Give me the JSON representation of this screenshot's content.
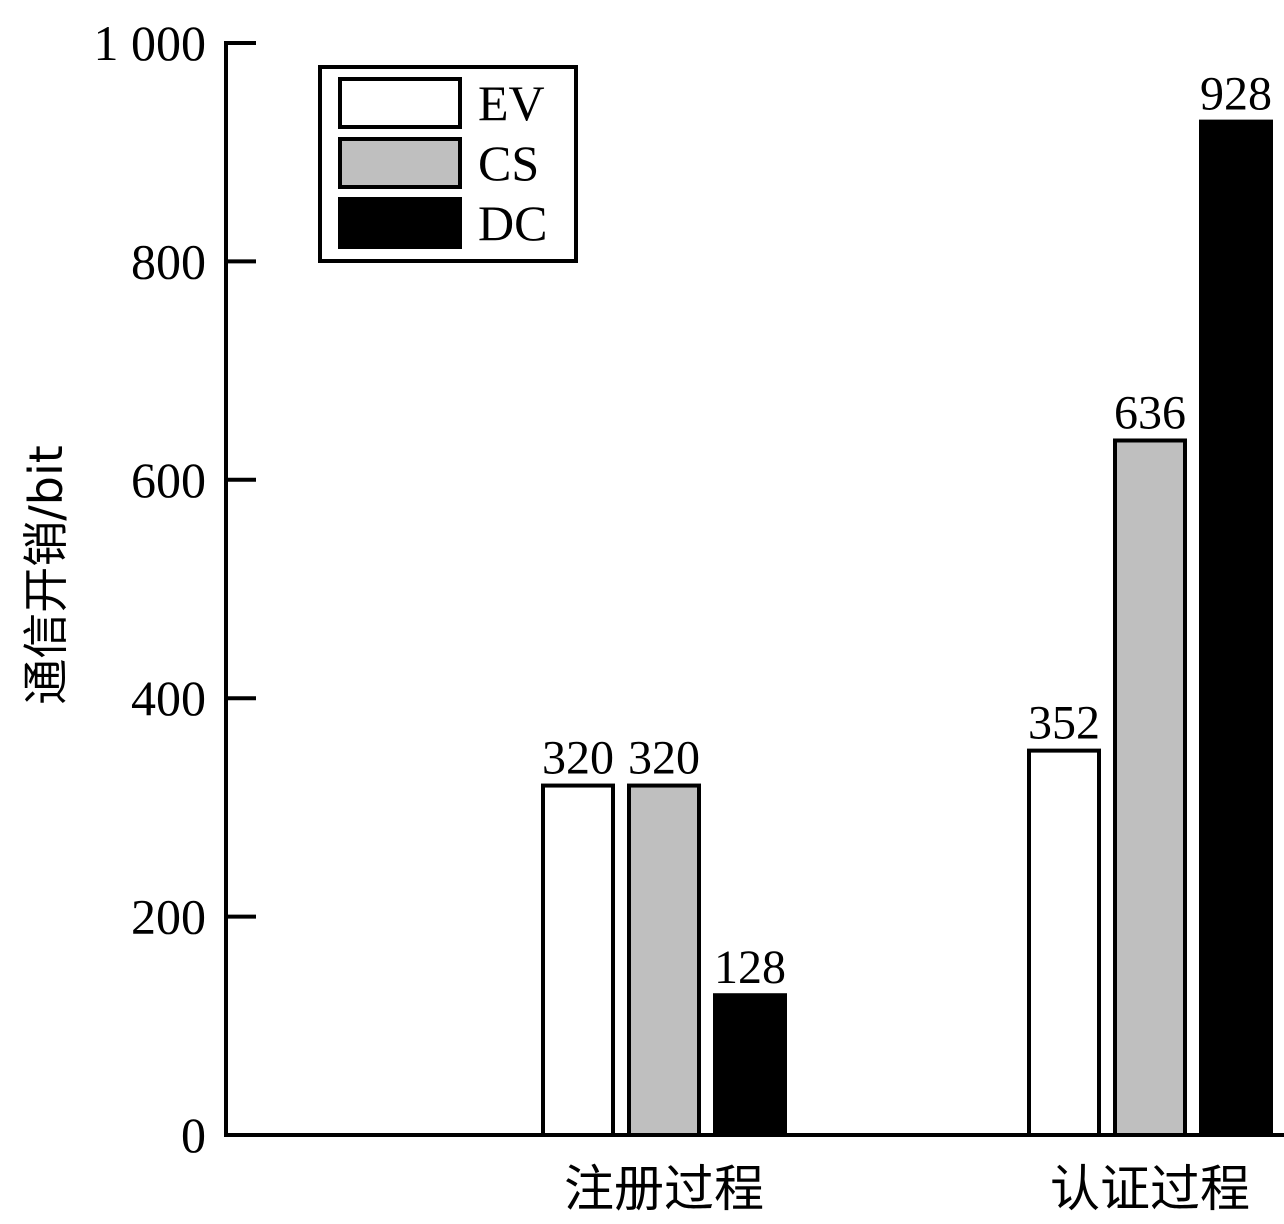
{
  "chart_data": {
    "type": "bar",
    "categories": [
      "注册过程",
      "认证过程"
    ],
    "series": [
      {
        "name": "EV",
        "values": [
          320,
          352
        ],
        "color": "#ffffff"
      },
      {
        "name": "CS",
        "values": [
          320,
          636
        ],
        "color": "#bfbfbf"
      },
      {
        "name": "DC",
        "values": [
          128,
          928
        ],
        "color": "#000000"
      }
    ],
    "ylabel": "通信开销/bit",
    "xlabel": "",
    "ylim": [
      0,
      1000
    ],
    "yticks": [
      0,
      200,
      400,
      600,
      800,
      1000
    ],
    "ytick_labels": [
      "0",
      "200",
      "400",
      "600",
      "800",
      "1 000"
    ],
    "data_labels": [
      [
        "320",
        "352"
      ],
      [
        "320",
        "636"
      ],
      [
        "128",
        "928"
      ]
    ],
    "legend_position": "top-left",
    "grid": false
  }
}
